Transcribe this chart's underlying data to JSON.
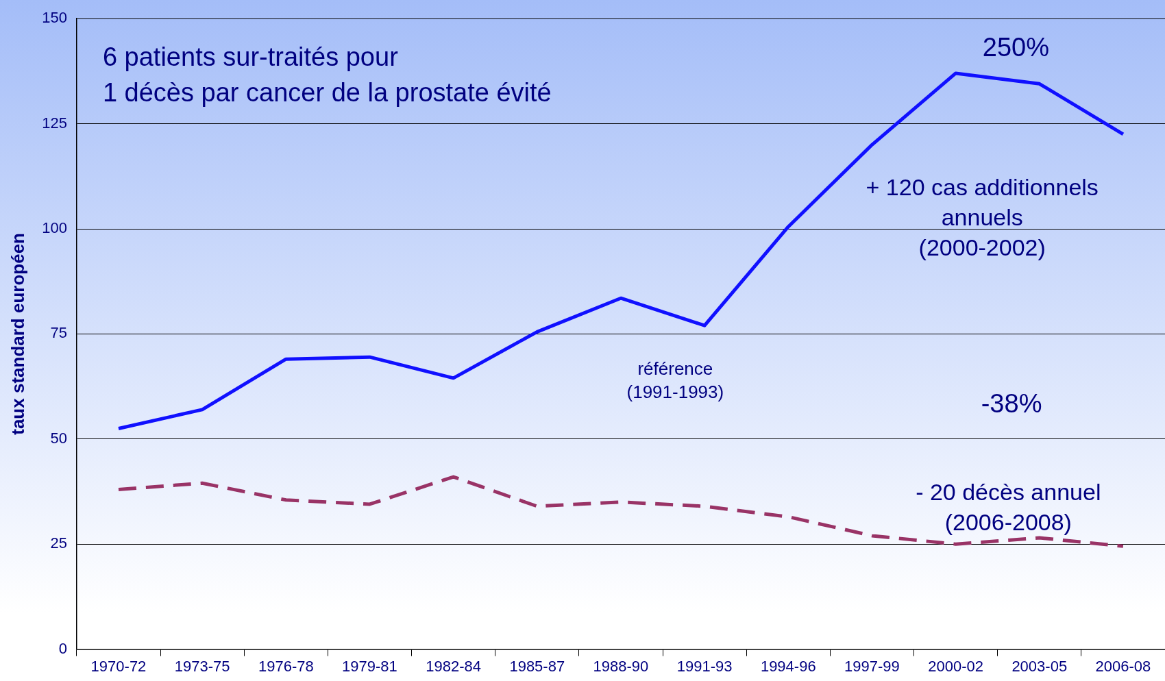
{
  "chart_data": {
    "type": "line",
    "title": "6 patients sur-traités pour\n1 décès par cancer de la prostate évité",
    "ylabel": "taux standard européen",
    "categories": [
      "1970-72",
      "1973-75",
      "1976-78",
      "1979-81",
      "1982-84",
      "1985-87",
      "1988-90",
      "1991-93",
      "1994-96",
      "1997-99",
      "2000-02",
      "2003-05",
      "2006-08"
    ],
    "series": [
      {
        "color": "#1010ff",
        "line_style": "solid",
        "values": [
          52.5,
          57,
          69,
          69.5,
          64.5,
          75.5,
          83.5,
          77,
          100.5,
          120,
          137,
          134.5,
          122.5
        ]
      },
      {
        "color": "#993366",
        "line_style": "dashed",
        "values": [
          38,
          39.5,
          35.5,
          34.5,
          41,
          34,
          35,
          34,
          31.5,
          27,
          25,
          26.5,
          24.5
        ]
      }
    ],
    "ylim": [
      0,
      150
    ],
    "yticks": [
      0,
      25,
      50,
      75,
      100,
      125,
      150
    ],
    "grid": "y",
    "legend": false,
    "marker": "none",
    "annotations": [
      "250%",
      "+ 120 cas additionnels\nannuels\n(2000-2002)",
      "référence\n(1991-1993)",
      "-38%",
      "- 20 décès annuel\n(2006-2008)"
    ]
  }
}
